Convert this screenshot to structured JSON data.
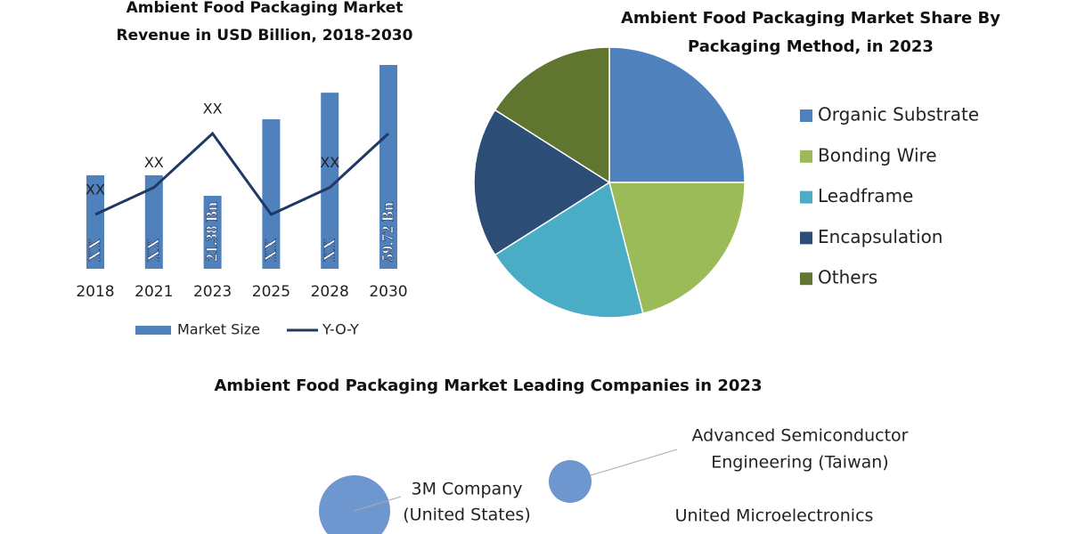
{
  "chart_data": [
    {
      "type": "bar",
      "title": "Ambient Food Packaging Market Revenue in USD Billion, 2018-2030",
      "categories": [
        "2018",
        "2021",
        "2023",
        "2025",
        "2028",
        "2030"
      ],
      "series": [
        {
          "name": "Market Size",
          "type": "bar",
          "color": "#4f81bd",
          "values": [
            27.4,
            27.4,
            21.38,
            43.8,
            51.6,
            59.72
          ],
          "value_labels": [
            "XX",
            "XX",
            "21.38 Bn",
            "XX",
            "XX",
            "59.72 Bn"
          ]
        },
        {
          "name": "Y-O-Y",
          "type": "line",
          "color": "#1f3864",
          "values": [
            5,
            10,
            20,
            5,
            10,
            20
          ],
          "value_labels": [
            "XX",
            "XX",
            "XX",
            null,
            "XX",
            null
          ]
        }
      ],
      "legend": "bottom"
    },
    {
      "type": "pie",
      "title": "Ambient Food Packaging Market Share By Packaging Method, in 2023",
      "categories": [
        "Organic Substrate",
        "Bonding Wire",
        "Leadframe",
        "Encapsulation",
        "Others"
      ],
      "values": [
        25,
        21,
        20,
        18,
        16
      ],
      "colors": [
        "#4f81bd",
        "#9bbb59",
        "#4bacc6",
        "#2c4d75",
        "#5f7530"
      ],
      "legend": "right"
    }
  ],
  "companies": {
    "title": "Ambient Food Packaging Market Leading Companies in 2023",
    "items": [
      {
        "lines": [
          "Advanced Semiconductor",
          "Engineering (Taiwan)"
        ]
      },
      {
        "lines": [
          "3M Company",
          "(United States)"
        ]
      },
      {
        "lines": [
          "United Microelectronics"
        ]
      }
    ]
  }
}
